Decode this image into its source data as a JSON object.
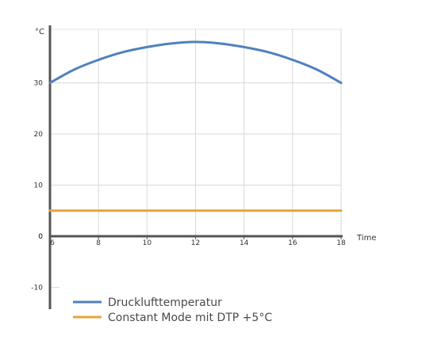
{
  "chart_data": {
    "type": "line",
    "ylabel": "°C",
    "xlabel": "Time",
    "xlim": [
      6,
      18
    ],
    "ylim": [
      -10,
      40
    ],
    "x_ticks": [
      6,
      8,
      10,
      12,
      14,
      16,
      18
    ],
    "y_ticks": [
      -10,
      0,
      10,
      20,
      30
    ],
    "grid": true,
    "legend_position": "bottom-left",
    "series": [
      {
        "name": "Drucklufttemperatur",
        "color": "#4f81bd",
        "x": [
          6,
          7,
          8,
          9,
          10,
          11,
          12,
          13,
          14,
          15,
          16,
          17,
          18
        ],
        "y": [
          30,
          32.6,
          34.5,
          36,
          37,
          37.7,
          38,
          37.7,
          37,
          36,
          34.5,
          32.6,
          30
        ]
      },
      {
        "name": "Constant Mode mit DTP +5°C",
        "color": "#e8a33c",
        "x": [
          6,
          18
        ],
        "y": [
          5,
          5
        ]
      }
    ]
  }
}
